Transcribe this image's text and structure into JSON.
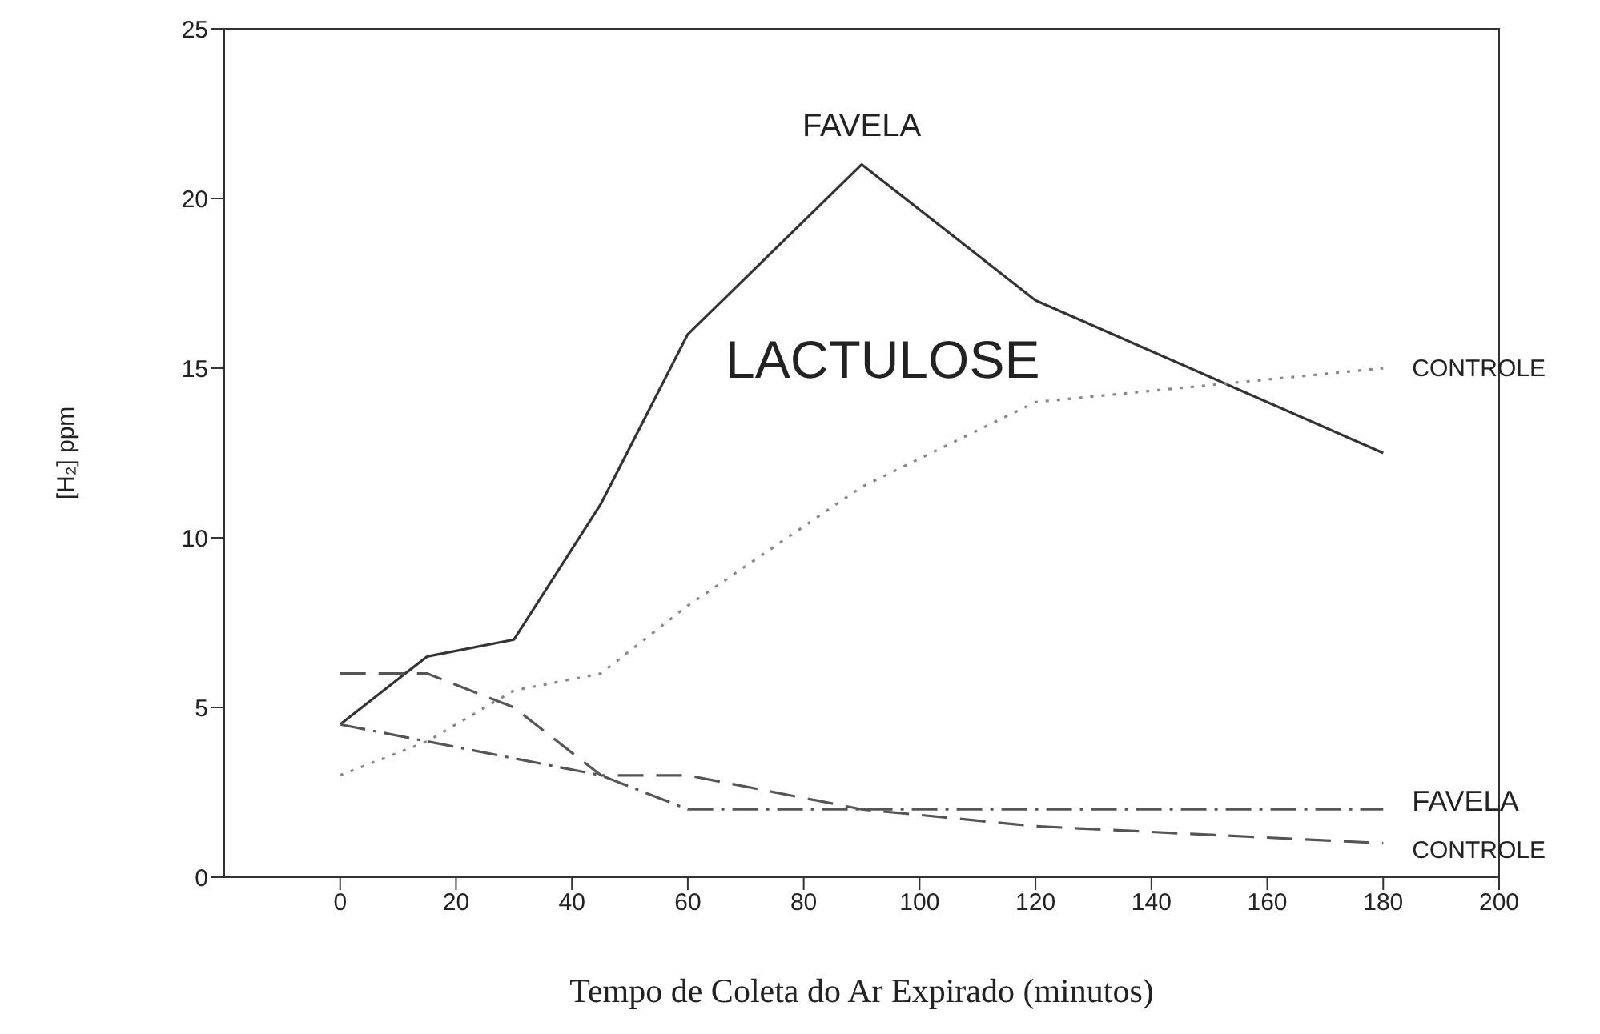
{
  "chart_data": {
    "type": "line",
    "xlabel": "Tempo de Coleta do Ar Expirado (minutos)",
    "ylabel": "[H₂] ppm",
    "x": [
      0,
      15,
      30,
      45,
      60,
      90,
      120,
      180
    ],
    "xlim": [
      -20,
      200
    ],
    "xticks": [
      0,
      20,
      40,
      60,
      80,
      100,
      120,
      140,
      160,
      180,
      200
    ],
    "ylim": [
      0,
      25
    ],
    "yticks": [
      0,
      5,
      10,
      15,
      20,
      25
    ],
    "marker": "none",
    "annotations": [
      "LACTULOSE"
    ],
    "series": [
      {
        "name": "FAVELA",
        "color": "#333333",
        "line_style": "solid",
        "values": [
          4.5,
          6.5,
          7,
          11,
          16,
          21,
          17,
          12.5
        ]
      },
      {
        "name": "CONTROLE",
        "color": "#888888",
        "line_style": "dotted",
        "values": [
          3,
          4,
          5.5,
          6,
          8,
          11.5,
          14,
          15
        ]
      },
      {
        "name": "FAVELA",
        "color": "#555555",
        "line_style": "dashdot",
        "values": [
          4.5,
          4,
          3.5,
          3,
          2,
          2,
          2,
          2
        ]
      },
      {
        "name": "CONTROLE",
        "color": "#555555",
        "line_style": "dashed",
        "values": [
          6,
          6,
          5,
          3,
          3,
          2,
          1.5,
          1
        ]
      }
    ]
  }
}
